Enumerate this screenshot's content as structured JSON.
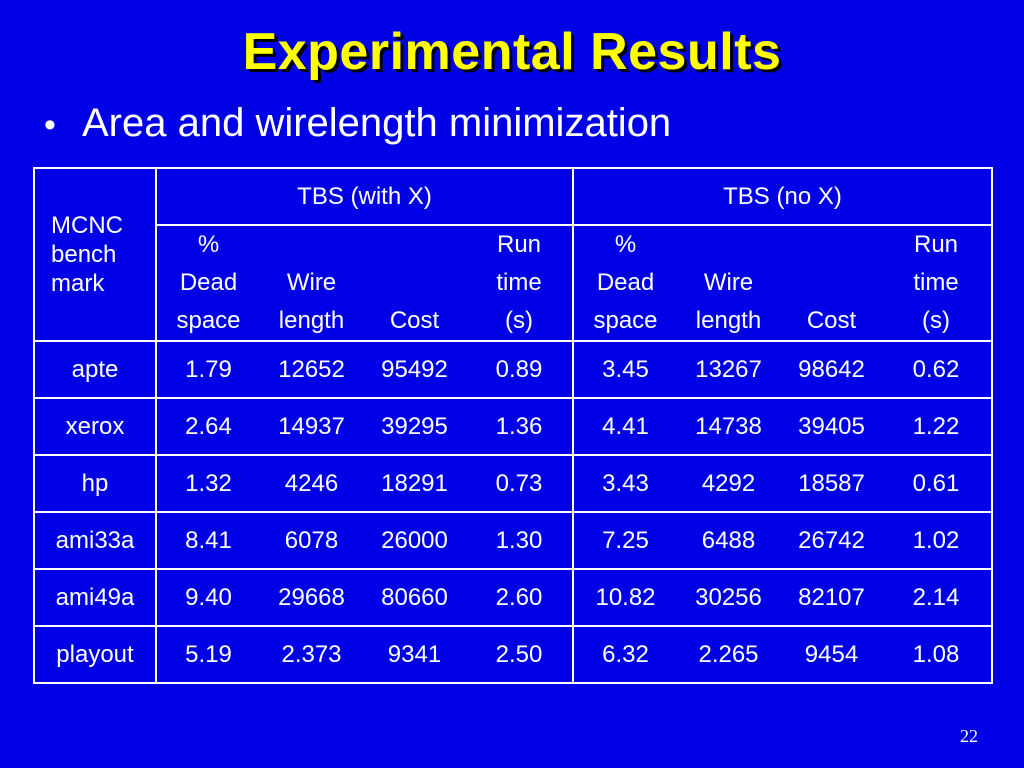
{
  "slide": {
    "title": "Experimental Results",
    "bullet_marker": "•",
    "bullet": "Area and wirelength minimization",
    "page_number": "22"
  },
  "table": {
    "benchmark_header": [
      "MCNC",
      "bench",
      "mark"
    ],
    "groups": [
      {
        "label": "TBS (with X)",
        "columns": [
          [
            "%",
            "Dead",
            "space"
          ],
          [
            "",
            "Wire",
            "length"
          ],
          [
            "",
            "",
            "Cost"
          ],
          [
            "Run",
            "time",
            "(s)"
          ]
        ]
      },
      {
        "label": "TBS (no X)",
        "columns": [
          [
            "%",
            "Dead",
            "space"
          ],
          [
            "",
            "Wire",
            "length"
          ],
          [
            "",
            "",
            "Cost"
          ],
          [
            "Run",
            "time",
            "(s)"
          ]
        ]
      }
    ],
    "rows": [
      {
        "name": "apte",
        "with_x": [
          "1.79",
          "12652",
          "95492",
          "0.89"
        ],
        "no_x": [
          "3.45",
          "13267",
          "98642",
          "0.62"
        ]
      },
      {
        "name": "xerox",
        "with_x": [
          "2.64",
          "14937",
          "39295",
          "1.36"
        ],
        "no_x": [
          "4.41",
          "14738",
          "39405",
          "1.22"
        ]
      },
      {
        "name": "hp",
        "with_x": [
          "1.32",
          "4246",
          "18291",
          "0.73"
        ],
        "no_x": [
          "3.43",
          "4292",
          "18587",
          "0.61"
        ]
      },
      {
        "name": "ami33a",
        "with_x": [
          "8.41",
          "6078",
          "26000",
          "1.30"
        ],
        "no_x": [
          "7.25",
          "6488",
          "26742",
          "1.02"
        ]
      },
      {
        "name": "ami49a",
        "with_x": [
          "9.40",
          "29668",
          "80660",
          "2.60"
        ],
        "no_x": [
          "10.82",
          "30256",
          "82107",
          "2.14"
        ]
      },
      {
        "name": "playout",
        "with_x": [
          "5.19",
          "2.373",
          "9341",
          "2.50"
        ],
        "no_x": [
          "6.32",
          "2.265",
          "9454",
          "1.08"
        ]
      }
    ]
  },
  "colors": {
    "background": "#0000e6",
    "title": "#ffff00",
    "text": "#ffffff"
  }
}
